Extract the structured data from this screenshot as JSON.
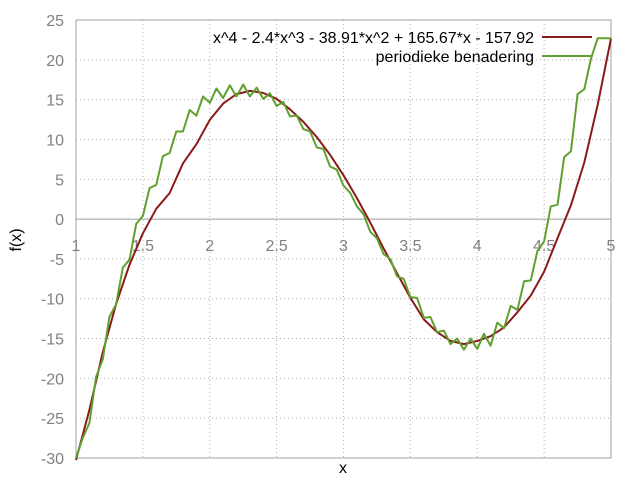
{
  "chart_data": {
    "type": "line",
    "xlabel": "x",
    "ylabel": "f(x)",
    "xlim": [
      1,
      5
    ],
    "ylim": [
      -30,
      25
    ],
    "x_ticks": [
      "1",
      "1.5",
      "2",
      "2.5",
      "3",
      "3.5",
      "4",
      "4.5",
      "5"
    ],
    "y_ticks": [
      "-30",
      "-25",
      "-20",
      "-15",
      "-10",
      "-5",
      "0",
      "5",
      "10",
      "15",
      "20",
      "25"
    ],
    "grid": true,
    "legend_position": "top-right",
    "series": [
      {
        "name": "x^4 - 2.4*x^3 - 38.91*x^2 + 165.67*x - 157.92",
        "color": "#8b1a1a",
        "x": [
          1.0,
          1.1,
          1.2,
          1.3,
          1.4,
          1.5,
          1.6,
          1.7,
          1.8,
          1.9,
          2.0,
          2.1,
          2.2,
          2.3,
          2.4,
          2.5,
          2.6,
          2.7,
          2.8,
          2.9,
          3.0,
          3.1,
          3.2,
          3.3,
          3.4,
          3.5,
          3.6,
          3.7,
          3.8,
          3.9,
          4.0,
          4.1,
          4.2,
          4.3,
          4.4,
          4.5,
          4.6,
          4.7,
          4.8,
          4.9,
          5.0
        ],
        "values": [
          -32.56,
          -23.96,
          -16.7,
          -10.66,
          -5.73,
          -1.78,
          1.3,
          3.26,
          7.0,
          9.4,
          12.45,
          14.5,
          15.7,
          16.1,
          15.83,
          15.1,
          13.79,
          12.2,
          10.3,
          8.07,
          5.5,
          2.65,
          -0.45,
          -3.68,
          -6.8,
          -9.9,
          -12.6,
          -14.2,
          -15.3,
          -15.7,
          -15.3,
          -14.7,
          -13.6,
          -11.7,
          -9.6,
          -6.6,
          -2.4,
          1.73,
          7.1,
          14.3,
          22.68
        ]
      },
      {
        "name": "periodieke benadering",
        "color": "#5fa02e",
        "x": [
          1.0,
          1.05,
          1.1,
          1.15,
          1.2,
          1.25,
          1.3,
          1.35,
          1.4,
          1.45,
          1.5,
          1.55,
          1.6,
          1.65,
          1.7,
          1.75,
          1.8,
          1.85,
          1.9,
          1.95,
          2.0,
          2.05,
          2.1,
          2.15,
          2.2,
          2.25,
          2.3,
          2.35,
          2.4,
          2.45,
          2.5,
          2.55,
          2.6,
          2.65,
          2.7,
          2.75,
          2.8,
          2.85,
          2.9,
          2.95,
          3.0,
          3.05,
          3.1,
          3.15,
          3.2,
          3.25,
          3.3,
          3.35,
          3.4,
          3.45,
          3.5,
          3.55,
          3.6,
          3.65,
          3.7,
          3.75,
          3.8,
          3.85,
          3.9,
          3.95,
          4.0,
          4.05,
          4.1,
          4.15,
          4.2,
          4.25,
          4.3,
          4.35,
          4.4,
          4.45,
          4.5,
          4.55,
          4.6,
          4.65,
          4.7,
          4.75,
          4.8,
          4.85,
          4.9,
          4.95,
          5.0
        ],
        "values": [
          -30,
          -27.5,
          -25.6,
          -19.8,
          -17.6,
          -12.3,
          -10.7,
          -6.1,
          -5.1,
          -0.6,
          0.4,
          3.9,
          4.3,
          7.9,
          8.3,
          11.0,
          11.0,
          13.7,
          13.0,
          15.4,
          14.6,
          16.4,
          15.2,
          16.8,
          15.4,
          16.9,
          15.4,
          16.5,
          15.1,
          15.8,
          14.2,
          14.7,
          12.9,
          13.0,
          11.3,
          11.0,
          9.0,
          8.8,
          6.6,
          6.2,
          4.2,
          3.3,
          1.6,
          0.6,
          -1.6,
          -2.4,
          -4.4,
          -5.0,
          -7.2,
          -7.5,
          -9.8,
          -9.9,
          -12.4,
          -12.3,
          -14.2,
          -14.0,
          -15.7,
          -15.0,
          -16.4,
          -15.0,
          -16.3,
          -14.4,
          -15.9,
          -13.0,
          -13.7,
          -10.9,
          -11.4,
          -7.8,
          -7.7,
          -4.0,
          -2.8,
          1.6,
          1.8,
          7.8,
          8.5,
          15.7,
          16.3,
          20.1,
          22.7,
          22.7,
          22.7
        ]
      }
    ]
  }
}
